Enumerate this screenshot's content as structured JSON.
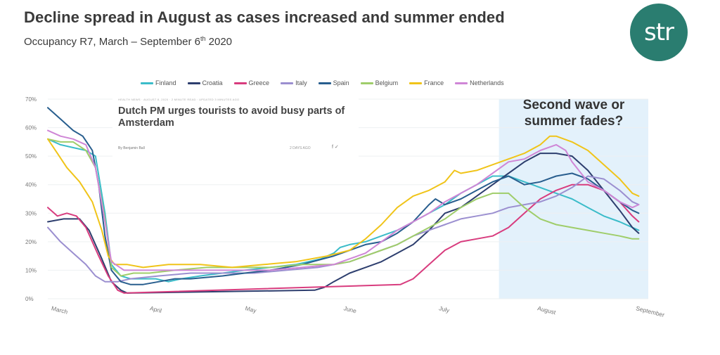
{
  "header": {
    "title": "Decline spread in August as cases increased and summer ended",
    "subtitle_prefix": "Occupancy R7, March – September 6",
    "subtitle_sup": "th",
    "subtitle_suffix": " 2020"
  },
  "logo": {
    "text": "str"
  },
  "inset": {
    "meta": "HEALTH NEWS · AUGUST 8, 2020 · 2 MINUTE READ · UPDATED 3 MINUTES AGO",
    "headline": "Dutch PM urges tourists to avoid busy parts of Amsterdam",
    "byline": "By Benjamin Ball",
    "date": "2 DAYS AGO",
    "share": "f  ✓"
  },
  "annotation": {
    "text": "Second wave or summer fades?"
  },
  "colors": {
    "highlight_bg": "#e3f1fb",
    "grid": "#eef0f2",
    "axis_text": "#777777"
  },
  "chart_data": {
    "type": "line",
    "title": "Decline spread in August as cases increased and summer ended",
    "subtitle": "Occupancy R7, March – September 6th 2020",
    "ylim": [
      0,
      70
    ],
    "xlim": [
      0,
      189
    ],
    "y_ticks": [
      0,
      10,
      20,
      30,
      40,
      50,
      60,
      70
    ],
    "y_tick_labels": [
      "0%",
      "10%",
      "20%",
      "30%",
      "40%",
      "50%",
      "60%",
      "70%"
    ],
    "x_ticks": [
      {
        "label": "March",
        "day": 1
      },
      {
        "label": "April",
        "day": 32
      },
      {
        "label": "May",
        "day": 62
      },
      {
        "label": "June",
        "day": 93
      },
      {
        "label": "July",
        "day": 123
      },
      {
        "label": "August",
        "day": 154
      },
      {
        "label": "September",
        "day": 185
      }
    ],
    "highlight_range": [
      142,
      189
    ],
    "series": [
      {
        "name": "Finland",
        "color": "#3bbcc9",
        "points": [
          [
            0,
            56
          ],
          [
            4,
            54
          ],
          [
            8,
            53
          ],
          [
            12,
            52
          ],
          [
            15,
            50
          ],
          [
            18,
            30
          ],
          [
            20,
            12
          ],
          [
            23,
            8
          ],
          [
            26,
            7
          ],
          [
            30,
            7
          ],
          [
            34,
            7
          ],
          [
            38,
            6
          ],
          [
            42,
            7
          ],
          [
            48,
            8
          ],
          [
            55,
            9
          ],
          [
            62,
            10
          ],
          [
            70,
            11
          ],
          [
            78,
            12
          ],
          [
            86,
            14
          ],
          [
            90,
            16
          ],
          [
            92,
            18
          ],
          [
            95,
            19
          ],
          [
            100,
            20
          ],
          [
            105,
            22
          ],
          [
            110,
            24
          ],
          [
            115,
            27
          ],
          [
            120,
            30
          ],
          [
            125,
            33
          ],
          [
            130,
            37
          ],
          [
            135,
            40
          ],
          [
            140,
            43
          ],
          [
            145,
            43
          ],
          [
            150,
            41
          ],
          [
            155,
            39
          ],
          [
            160,
            37
          ],
          [
            165,
            35
          ],
          [
            170,
            32
          ],
          [
            175,
            29
          ],
          [
            180,
            27
          ],
          [
            184,
            25
          ],
          [
            186,
            24
          ]
        ]
      },
      {
        "name": "Croatia",
        "color": "#2d3e6e",
        "points": [
          [
            0,
            27
          ],
          [
            5,
            28
          ],
          [
            10,
            28
          ],
          [
            13,
            24
          ],
          [
            17,
            14
          ],
          [
            20,
            6
          ],
          [
            23,
            3
          ],
          [
            25,
            2
          ],
          [
            84,
            3
          ],
          [
            87,
            4
          ],
          [
            90,
            6
          ],
          [
            95,
            9
          ],
          [
            100,
            11
          ],
          [
            105,
            13
          ],
          [
            110,
            16
          ],
          [
            115,
            19
          ],
          [
            120,
            24
          ],
          [
            125,
            30
          ],
          [
            130,
            32
          ],
          [
            135,
            36
          ],
          [
            140,
            40
          ],
          [
            145,
            44
          ],
          [
            150,
            48
          ],
          [
            155,
            51
          ],
          [
            160,
            51
          ],
          [
            165,
            50
          ],
          [
            170,
            45
          ],
          [
            175,
            38
          ],
          [
            180,
            31
          ],
          [
            184,
            25
          ],
          [
            186,
            23
          ]
        ]
      },
      {
        "name": "Greece",
        "color": "#d83c7e",
        "points": [
          [
            0,
            32
          ],
          [
            3,
            29
          ],
          [
            6,
            30
          ],
          [
            9,
            29
          ],
          [
            12,
            25
          ],
          [
            16,
            15
          ],
          [
            19,
            8
          ],
          [
            22,
            3
          ],
          [
            24,
            2
          ],
          [
            111,
            5
          ],
          [
            115,
            7
          ],
          [
            120,
            12
          ],
          [
            125,
            17
          ],
          [
            130,
            20
          ],
          [
            135,
            21
          ],
          [
            140,
            22
          ],
          [
            145,
            25
          ],
          [
            150,
            30
          ],
          [
            155,
            35
          ],
          [
            160,
            38
          ],
          [
            165,
            40
          ],
          [
            170,
            40
          ],
          [
            175,
            38
          ],
          [
            180,
            34
          ],
          [
            184,
            29
          ],
          [
            186,
            27
          ]
        ]
      },
      {
        "name": "Italy",
        "color": "#9b8fd0",
        "points": [
          [
            0,
            25
          ],
          [
            4,
            20
          ],
          [
            8,
            16
          ],
          [
            12,
            12
          ],
          [
            15,
            8
          ],
          [
            18,
            6
          ],
          [
            22,
            6
          ],
          [
            26,
            7
          ],
          [
            35,
            8
          ],
          [
            45,
            9
          ],
          [
            55,
            9
          ],
          [
            65,
            9
          ],
          [
            75,
            10
          ],
          [
            85,
            11
          ],
          [
            95,
            13
          ],
          [
            100,
            15
          ],
          [
            105,
            17
          ],
          [
            110,
            19
          ],
          [
            115,
            22
          ],
          [
            120,
            24
          ],
          [
            125,
            26
          ],
          [
            130,
            28
          ],
          [
            135,
            29
          ],
          [
            140,
            30
          ],
          [
            145,
            32
          ],
          [
            150,
            33
          ],
          [
            155,
            34
          ],
          [
            160,
            36
          ],
          [
            165,
            39
          ],
          [
            170,
            43
          ],
          [
            175,
            42
          ],
          [
            180,
            38
          ],
          [
            184,
            34
          ],
          [
            186,
            33
          ]
        ]
      },
      {
        "name": "Spain",
        "color": "#285e8e",
        "points": [
          [
            0,
            67
          ],
          [
            4,
            63
          ],
          [
            8,
            59
          ],
          [
            11,
            57
          ],
          [
            14,
            52
          ],
          [
            16,
            40
          ],
          [
            18,
            22
          ],
          [
            20,
            10
          ],
          [
            23,
            6
          ],
          [
            26,
            5
          ],
          [
            30,
            5
          ],
          [
            35,
            6
          ],
          [
            40,
            7
          ],
          [
            45,
            7
          ],
          [
            55,
            8
          ],
          [
            62,
            9
          ],
          [
            70,
            10
          ],
          [
            80,
            12
          ],
          [
            90,
            15
          ],
          [
            95,
            17
          ],
          [
            100,
            19
          ],
          [
            105,
            20
          ],
          [
            110,
            23
          ],
          [
            115,
            27
          ],
          [
            120,
            33
          ],
          [
            122,
            35
          ],
          [
            125,
            33
          ],
          [
            130,
            35
          ],
          [
            135,
            38
          ],
          [
            140,
            41
          ],
          [
            145,
            43
          ],
          [
            150,
            40
          ],
          [
            155,
            41
          ],
          [
            160,
            43
          ],
          [
            165,
            44
          ],
          [
            170,
            42
          ],
          [
            175,
            38
          ],
          [
            180,
            34
          ],
          [
            184,
            31
          ],
          [
            186,
            30
          ]
        ]
      },
      {
        "name": "Belgium",
        "color": "#9fcd6a",
        "points": [
          [
            0,
            56
          ],
          [
            4,
            55
          ],
          [
            8,
            55
          ],
          [
            12,
            52
          ],
          [
            15,
            46
          ],
          [
            18,
            28
          ],
          [
            20,
            11
          ],
          [
            23,
            8
          ],
          [
            27,
            9
          ],
          [
            32,
            9
          ],
          [
            40,
            10
          ],
          [
            50,
            11
          ],
          [
            60,
            11
          ],
          [
            70,
            11
          ],
          [
            80,
            12
          ],
          [
            90,
            12
          ],
          [
            95,
            13
          ],
          [
            100,
            15
          ],
          [
            105,
            17
          ],
          [
            110,
            19
          ],
          [
            115,
            22
          ],
          [
            120,
            25
          ],
          [
            125,
            28
          ],
          [
            130,
            32
          ],
          [
            135,
            35
          ],
          [
            140,
            37
          ],
          [
            145,
            37
          ],
          [
            150,
            32
          ],
          [
            155,
            28
          ],
          [
            160,
            26
          ],
          [
            165,
            25
          ],
          [
            170,
            24
          ],
          [
            175,
            23
          ],
          [
            180,
            22
          ],
          [
            184,
            21
          ],
          [
            186,
            21
          ]
        ]
      },
      {
        "name": "France",
        "color": "#f0c419",
        "points": [
          [
            0,
            56
          ],
          [
            3,
            51
          ],
          [
            6,
            46
          ],
          [
            10,
            41
          ],
          [
            14,
            34
          ],
          [
            17,
            24
          ],
          [
            19,
            15
          ],
          [
            21,
            12
          ],
          [
            25,
            12
          ],
          [
            30,
            11
          ],
          [
            38,
            12
          ],
          [
            48,
            12
          ],
          [
            58,
            11
          ],
          [
            68,
            12
          ],
          [
            78,
            13
          ],
          [
            88,
            15
          ],
          [
            95,
            17
          ],
          [
            100,
            21
          ],
          [
            105,
            26
          ],
          [
            110,
            32
          ],
          [
            115,
            36
          ],
          [
            120,
            38
          ],
          [
            125,
            41
          ],
          [
            128,
            45
          ],
          [
            130,
            44
          ],
          [
            135,
            45
          ],
          [
            140,
            47
          ],
          [
            145,
            49
          ],
          [
            150,
            51
          ],
          [
            155,
            54
          ],
          [
            158,
            57
          ],
          [
            160,
            57
          ],
          [
            165,
            55
          ],
          [
            170,
            52
          ],
          [
            175,
            47
          ],
          [
            180,
            42
          ],
          [
            184,
            37
          ],
          [
            186,
            36
          ]
        ]
      },
      {
        "name": "Netherlands",
        "color": "#cf86d6",
        "points": [
          [
            0,
            59
          ],
          [
            4,
            57
          ],
          [
            8,
            56
          ],
          [
            12,
            54
          ],
          [
            15,
            46
          ],
          [
            18,
            27
          ],
          [
            20,
            13
          ],
          [
            24,
            10
          ],
          [
            30,
            10
          ],
          [
            40,
            10
          ],
          [
            50,
            10
          ],
          [
            60,
            10
          ],
          [
            70,
            10
          ],
          [
            80,
            11
          ],
          [
            90,
            12
          ],
          [
            95,
            14
          ],
          [
            100,
            16
          ],
          [
            105,
            20
          ],
          [
            110,
            24
          ],
          [
            115,
            27
          ],
          [
            120,
            30
          ],
          [
            125,
            34
          ],
          [
            130,
            37
          ],
          [
            135,
            40
          ],
          [
            140,
            44
          ],
          [
            145,
            48
          ],
          [
            150,
            49
          ],
          [
            155,
            52
          ],
          [
            160,
            54
          ],
          [
            163,
            52
          ],
          [
            165,
            48
          ],
          [
            170,
            41
          ],
          [
            175,
            38
          ],
          [
            180,
            34
          ],
          [
            184,
            32
          ],
          [
            186,
            33
          ]
        ]
      }
    ]
  }
}
